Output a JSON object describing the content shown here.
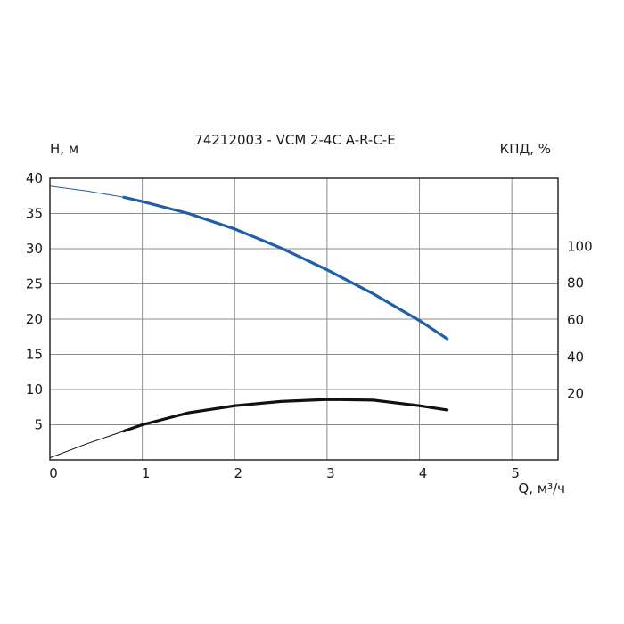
{
  "chart_data": {
    "type": "line",
    "title": "74212003 - VCM 2-4C A-R-C-E",
    "xlabel": "Q, м³/ч",
    "ylabel": "H, м",
    "y2label": "КПД, %",
    "xlim": [
      0,
      5.5
    ],
    "ylim": [
      0,
      40
    ],
    "y2lim": [
      -16,
      137
    ],
    "x_ticks": [
      "0",
      "1",
      "2",
      "3",
      "4",
      "5"
    ],
    "y_ticks": [
      "5",
      "10",
      "15",
      "20",
      "25",
      "30",
      "35",
      "40"
    ],
    "y2_ticks": [
      "20",
      "40",
      "60",
      "80",
      "100"
    ],
    "grid": true,
    "series": [
      {
        "axis": "left",
        "color": "#1f5fa8",
        "points": [
          [
            0,
            38.9
          ],
          [
            0.4,
            38.2
          ],
          [
            0.8,
            37.3
          ],
          [
            1.0,
            36.7
          ],
          [
            1.5,
            35.0
          ],
          [
            2.0,
            32.8
          ],
          [
            2.5,
            30.1
          ],
          [
            3.0,
            27.0
          ],
          [
            3.5,
            23.6
          ],
          [
            4.0,
            19.8
          ],
          [
            4.3,
            17.2
          ]
        ],
        "thin_until_x": 0.8
      },
      {
        "axis": "right",
        "color": "#111111",
        "points": [
          [
            0,
            0.3
          ],
          [
            0.4,
            2.3
          ],
          [
            0.8,
            4.1
          ],
          [
            1.0,
            5.0
          ],
          [
            1.5,
            6.7
          ],
          [
            2.0,
            7.7
          ],
          [
            2.5,
            8.3
          ],
          [
            3.0,
            8.6
          ],
          [
            3.5,
            8.5
          ],
          [
            4.0,
            7.7
          ],
          [
            4.3,
            7.1
          ]
        ],
        "thin_until_x": 0.8
      }
    ]
  }
}
